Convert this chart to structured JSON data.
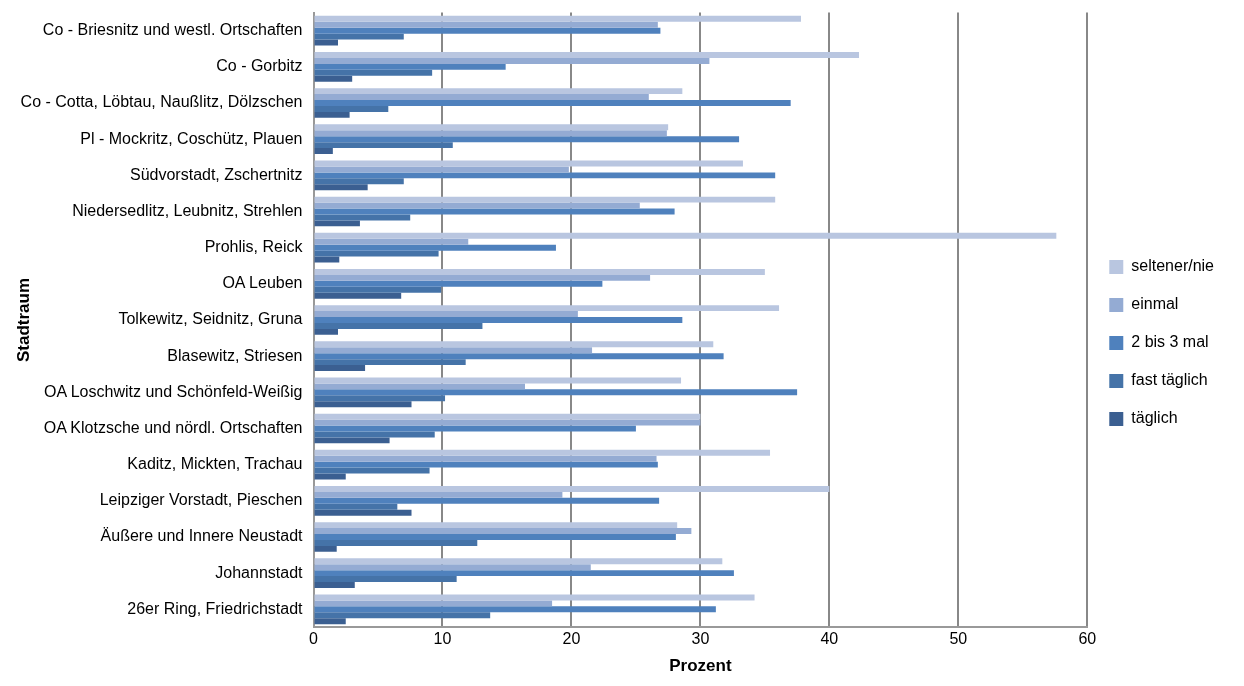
{
  "chart_data": {
    "type": "bar",
    "orientation": "horizontal",
    "xlabel": "Prozent",
    "ylabel": "Stadtraum",
    "categories": [
      "Co - Briesnitz und westl. Ortschaften",
      "Co - Gorbitz",
      "Co - Cotta, Löbtau, Naußlitz, Dölzschen",
      "Pl - Mockritz, Coschütz, Plauen",
      "Südvorstadt, Zschertnitz",
      "Niedersedlitz, Leubnitz, Strehlen",
      "Prohlis, Reick",
      "OA Leuben",
      "Tolkewitz, Seidnitz, Gruna",
      "Blasewitz, Striesen",
      "OA Loschwitz und Schönfeld-Weißig",
      "OA Klotzsche und nördl. Ortschaften",
      "Kaditz, Mickten, Trachau",
      "Leipziger Vorstadt, Pieschen",
      "Äußere und Innere Neustadt",
      "Johannstadt",
      "26er Ring, Friedrichstadt"
    ],
    "series": [
      {
        "name": "seltener/nie",
        "color": "#b9c6e0",
        "values": [
          37.8,
          42.3,
          28.6,
          27.5,
          33.3,
          35.8,
          57.6,
          35.0,
          36.1,
          31.0,
          28.5,
          30.0,
          35.4,
          40.0,
          28.2,
          31.7,
          34.2
        ]
      },
      {
        "name": "einmal",
        "color": "#94abd3",
        "values": [
          26.7,
          30.7,
          26.0,
          27.4,
          19.8,
          25.3,
          12.0,
          26.1,
          20.5,
          21.6,
          16.4,
          30.0,
          26.6,
          19.3,
          29.3,
          21.5,
          18.5
        ]
      },
      {
        "name": "2 bis 3 mal",
        "color": "#4f81bd",
        "values": [
          26.9,
          14.9,
          37.0,
          33.0,
          35.8,
          28.0,
          18.8,
          22.4,
          28.6,
          31.8,
          37.5,
          25.0,
          26.7,
          26.8,
          28.1,
          32.6,
          31.2
        ]
      },
      {
        "name": "fast täglich",
        "color": "#4573a8",
        "values": [
          7.0,
          9.2,
          5.8,
          10.8,
          7.0,
          7.5,
          9.7,
          9.9,
          13.1,
          11.8,
          10.2,
          9.4,
          9.0,
          6.5,
          12.7,
          11.1,
          13.7
        ]
      },
      {
        "name": "täglich",
        "color": "#3b5f91",
        "values": [
          1.9,
          3.0,
          2.8,
          1.5,
          4.2,
          3.6,
          2.0,
          6.8,
          1.9,
          4.0,
          7.6,
          5.9,
          2.5,
          7.6,
          1.8,
          3.2,
          2.5
        ]
      }
    ],
    "xlim": [
      0,
      60
    ],
    "xticks": [
      0,
      10,
      20,
      30,
      40,
      50,
      60
    ],
    "grid": "x",
    "legend": "right"
  }
}
